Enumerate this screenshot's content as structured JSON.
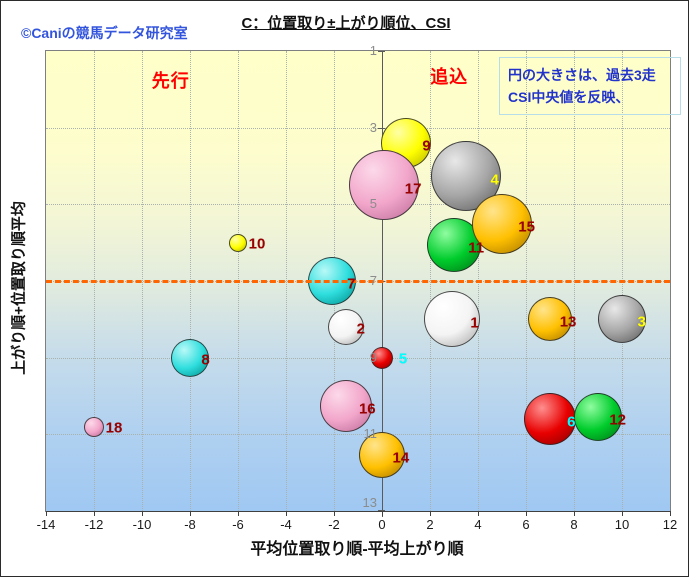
{
  "header": {
    "copyright": "©Caniの競馬データ研究室",
    "title": "C：位置取り±上がり順位、CSI"
  },
  "chart_data": {
    "type": "scatter",
    "variant": "bubble",
    "title": "C：位置取り±上がり順位、CSI",
    "xlabel": "平均位置取り順-平均上がり順",
    "ylabel": "上がり順+位置取り順平均",
    "xlim": [
      -14,
      12
    ],
    "ylim": [
      1,
      13
    ],
    "y_axis_reversed_downward": true,
    "grid": "dotted, every 2 units both axes",
    "x_ticks": [
      -14,
      -12,
      -10,
      -8,
      -6,
      -4,
      -2,
      0,
      2,
      4,
      6,
      8,
      10,
      12
    ],
    "y_ticks": [
      1,
      3,
      5,
      7,
      9,
      11,
      13
    ],
    "reference_line": {
      "y": 7,
      "style": "dashed",
      "color": "#ff6600",
      "thickness_px": 3
    },
    "region_labels": [
      {
        "text": "先行",
        "x": -8.8,
        "y": 1.75,
        "color": "#ff0000"
      },
      {
        "text": "追込",
        "x": 2.8,
        "y": 1.65,
        "color": "#ff0000"
      }
    ],
    "annotation": {
      "lines": [
        "円の大きさは、過去3走",
        "CSI中央値を反映、"
      ],
      "text_color": "#2233cc",
      "border_color": "#b7dee8"
    },
    "bubble_note": "size reflects median CSI of past 3 runs; array ordered back-to-front",
    "bubbles": [
      {
        "label": "9",
        "x": 1.0,
        "y": 3.4,
        "r": 25,
        "color": "yellow",
        "label_color": "darkred"
      },
      {
        "label": "4",
        "x": 3.5,
        "y": 4.25,
        "r": 35,
        "color": "gray",
        "label_color": "yellow"
      },
      {
        "label": "17",
        "x": 0.1,
        "y": 4.5,
        "r": 35,
        "color": "pink",
        "label_color": "darkred"
      },
      {
        "label": "11",
        "x": 3.0,
        "y": 6.05,
        "r": 27,
        "color": "green",
        "label_color": "darkred"
      },
      {
        "label": "15",
        "x": 5.0,
        "y": 5.5,
        "r": 30,
        "color": "gold",
        "label_color": "darkred"
      },
      {
        "label": "10",
        "x": -6.0,
        "y": 6.0,
        "r": 9,
        "color": "yellow",
        "label_color": "darkred"
      },
      {
        "label": "7",
        "x": -2.1,
        "y": 7.0,
        "r": 24,
        "color": "cyan",
        "label_color": "darkred"
      },
      {
        "label": "2",
        "x": -1.5,
        "y": 8.2,
        "r": 18,
        "color": "white",
        "label_color": "darkred"
      },
      {
        "label": "8",
        "x": -8.0,
        "y": 9.0,
        "r": 19,
        "color": "cyan",
        "label_color": "darkred"
      },
      {
        "label": "1",
        "x": 2.9,
        "y": 8.0,
        "r": 28,
        "color": "white",
        "label_color": "darkred"
      },
      {
        "label": "13",
        "x": 7.0,
        "y": 8.0,
        "r": 22,
        "color": "gold",
        "label_color": "darkred"
      },
      {
        "label": "3",
        "x": 10.0,
        "y": 8.0,
        "r": 24,
        "color": "gray",
        "label_color": "yellow"
      },
      {
        "label": "5",
        "x": 0.0,
        "y": 9.0,
        "r": 11,
        "color": "red",
        "label_color": "cyan"
      },
      {
        "label": "6",
        "x": 7.0,
        "y": 10.6,
        "r": 26,
        "color": "red",
        "label_color": "cyan"
      },
      {
        "label": "12",
        "x": 9.0,
        "y": 10.55,
        "r": 24,
        "color": "green",
        "label_color": "darkred"
      },
      {
        "label": "16",
        "x": -1.5,
        "y": 10.25,
        "r": 26,
        "color": "pink",
        "label_color": "darkred"
      },
      {
        "label": "14",
        "x": 0.0,
        "y": 11.55,
        "r": 23,
        "color": "gold",
        "label_color": "darkred"
      },
      {
        "label": "18",
        "x": -12.0,
        "y": 10.8,
        "r": 10,
        "color": "pink",
        "label_color": "darkred"
      }
    ],
    "palette": {
      "white": {
        "light": "#ffffff",
        "base": "#f4f4f4",
        "dark": "#a9a9a9"
      },
      "gray": {
        "light": "#e8e8e8",
        "base": "#a6a6a6",
        "dark": "#5d5d5d"
      },
      "yellow": {
        "light": "#ffffa6",
        "base": "#ffff00",
        "dark": "#b8b800"
      },
      "gold": {
        "light": "#ffe48c",
        "base": "#ffc000",
        "dark": "#a87800"
      },
      "pink": {
        "light": "#fcd9ea",
        "base": "#f2a6ca",
        "dark": "#bd6d9a"
      },
      "cyan": {
        "light": "#b8f9f7",
        "base": "#2fdede",
        "dark": "#00938f"
      },
      "red": {
        "light": "#ff8f8f",
        "base": "#e80000",
        "dark": "#8d0000"
      },
      "green": {
        "light": "#90fda0",
        "base": "#00cc2c",
        "dark": "#007a16"
      }
    },
    "label_colors": {
      "darkred": "#990000",
      "yellow": "#ffff00",
      "cyan": "#00ffff"
    }
  }
}
